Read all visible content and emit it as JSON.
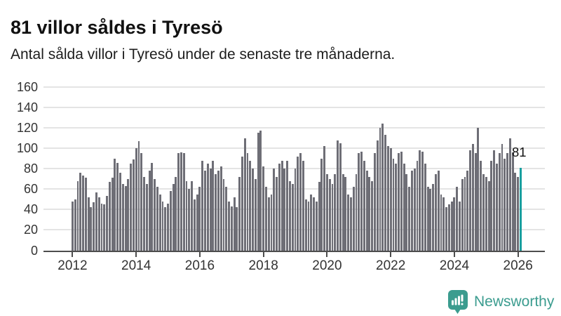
{
  "header": {
    "title": "81 villor såldes i Tyresö",
    "subtitle": "Antal sålda villor i Tyresö under de senaste tre månaderna."
  },
  "footer": {
    "brand": "Newsworthy"
  },
  "colors": {
    "bar": "#6e6e76",
    "highlight": "#189f9f",
    "grid": "#e4e4e4",
    "axis": "#4d4d4d",
    "tick_label": "#333333",
    "text": "#111111",
    "brand": "#3b9c8f"
  },
  "chart_data": {
    "type": "bar",
    "title": "81 villor såldes i Tyresö",
    "subtitle": "Antal sålda villor i Tyresö under de senaste tre månaderna.",
    "xlabel": "",
    "ylabel": "",
    "ylim": [
      0,
      160
    ],
    "yticks": [
      0,
      20,
      40,
      60,
      80,
      100,
      120,
      140,
      160
    ],
    "xtick_years": [
      2012,
      2014,
      2016,
      2018,
      2020,
      2022,
      2024,
      2026
    ],
    "grid": true,
    "legend": false,
    "frequency": "monthly",
    "x_start": "2012-01",
    "x_end": "2026-02",
    "annotation_label": "81",
    "highlight_last": true,
    "last_value": 81,
    "values": [
      48,
      50,
      68,
      76,
      73,
      71,
      52,
      42,
      47,
      57,
      52,
      46,
      45,
      53,
      67,
      71,
      90,
      86,
      76,
      65,
      63,
      70,
      85,
      89,
      100,
      107,
      95,
      72,
      65,
      78,
      86,
      70,
      62,
      55,
      48,
      42,
      46,
      58,
      65,
      72,
      95,
      96,
      95,
      68,
      60,
      68,
      50,
      55,
      62,
      88,
      78,
      85,
      80,
      88,
      75,
      78,
      82,
      70,
      62,
      48,
      43,
      52,
      42,
      72,
      92,
      110,
      95,
      88,
      80,
      70,
      115,
      117,
      82,
      62,
      52,
      55,
      80,
      72,
      85,
      88,
      80,
      88,
      68,
      65,
      80,
      92,
      95,
      88,
      50,
      48,
      55,
      52,
      48,
      67,
      90,
      102,
      75,
      70,
      65,
      75,
      108,
      105,
      75,
      72,
      55,
      52,
      62,
      75,
      95,
      97,
      88,
      78,
      72,
      68,
      95,
      108,
      120,
      124,
      113,
      102,
      100,
      90,
      85,
      95,
      97,
      85,
      75,
      62,
      78,
      80,
      88,
      98,
      97,
      85,
      62,
      60,
      65,
      75,
      78,
      55,
      52,
      42,
      45,
      48,
      52,
      62,
      48,
      70,
      72,
      78,
      98,
      104,
      95,
      120,
      88,
      75,
      72,
      68,
      88,
      98,
      85,
      95,
      104,
      90,
      95,
      110,
      96,
      76,
      72,
      81
    ]
  }
}
